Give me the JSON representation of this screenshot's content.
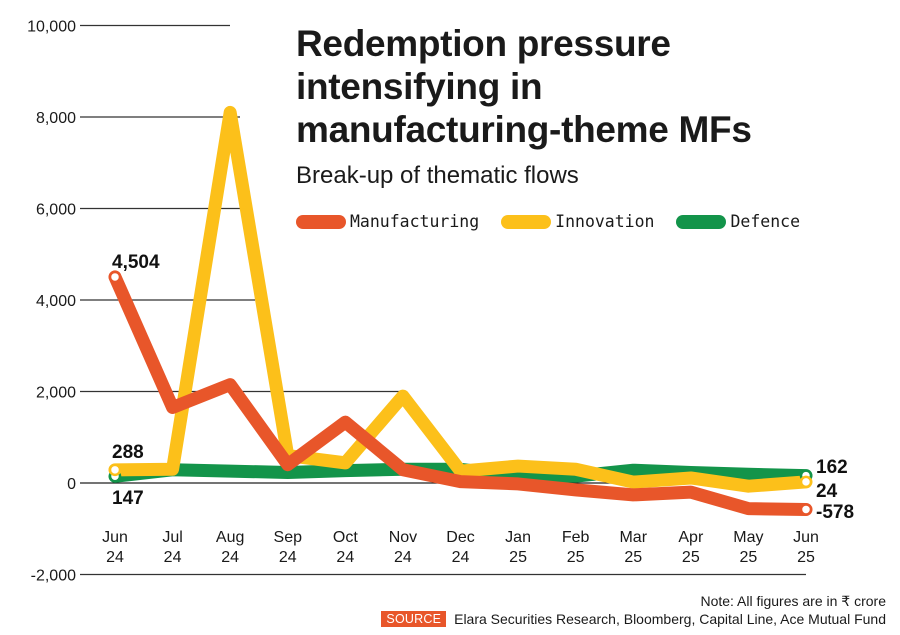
{
  "chart_data": {
    "type": "line",
    "title": "Redemption pressure intensifying in manufacturing-theme MFs",
    "title_lines": [
      "Redemption pressure",
      "intensifying in",
      "manufacturing-theme MFs"
    ],
    "subtitle": "Break-up of thematic flows",
    "xlabel": "",
    "ylabel": "",
    "ylim": [
      -2000,
      10000
    ],
    "yticks": [
      10000,
      8000,
      6000,
      4000,
      2000,
      0,
      -2000
    ],
    "ytick_labels": [
      "10,000",
      "8,000",
      "6,000",
      "4,000",
      "2,000",
      "0",
      "-2,000"
    ],
    "grid": true,
    "legend_position": "top-right",
    "categories": [
      [
        "Jun",
        "24"
      ],
      [
        "Jul",
        "24"
      ],
      [
        "Aug",
        "24"
      ],
      [
        "Sep",
        "24"
      ],
      [
        "Oct",
        "24"
      ],
      [
        "Nov",
        "24"
      ],
      [
        "Dec",
        "24"
      ],
      [
        "Jan",
        "25"
      ],
      [
        "Feb",
        "25"
      ],
      [
        "Mar",
        "25"
      ],
      [
        "Apr",
        "25"
      ],
      [
        "May",
        "25"
      ],
      [
        "Jun",
        "25"
      ]
    ],
    "series": [
      {
        "name": "Manufacturing",
        "color": "#e8562a",
        "values": [
          4504,
          1650,
          2150,
          400,
          1330,
          290,
          30,
          -20,
          -150,
          -260,
          -200,
          -560,
          -578
        ],
        "start_label": "4,504",
        "end_label": "-578"
      },
      {
        "name": "Innovation",
        "color": "#fcc01a",
        "values": [
          288,
          300,
          8100,
          600,
          440,
          1900,
          260,
          370,
          300,
          20,
          110,
          -70,
          24
        ],
        "start_label": "288",
        "end_label": "24"
      },
      {
        "name": "Defence",
        "color": "#13944a",
        "values": [
          147,
          290,
          260,
          230,
          270,
          300,
          300,
          150,
          150,
          280,
          230,
          190,
          162
        ],
        "start_label": "147",
        "end_label": "162"
      }
    ]
  },
  "footer": {
    "note": "Note: All figures are in ₹ crore",
    "source_tag": "SOURCE",
    "source_text": "Elara Securities Research, Bloomberg, Capital Line, Ace Mutual Fund"
  }
}
